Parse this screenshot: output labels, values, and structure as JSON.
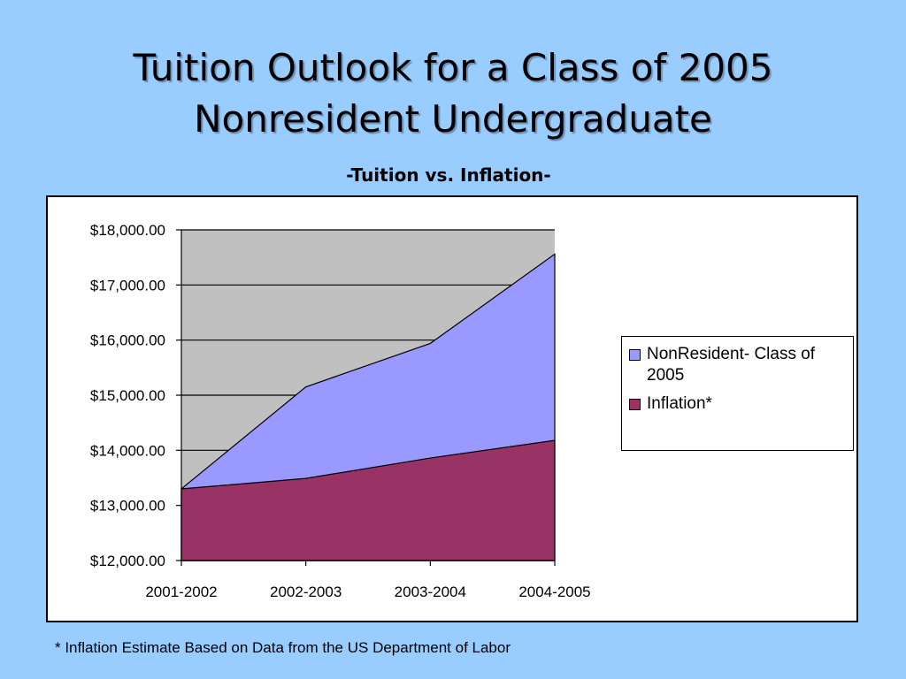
{
  "slide": {
    "title_line1": "Tuition Outlook for a Class of 2005",
    "title_line2": "Nonresident Undergraduate",
    "footnote": "* Inflation Estimate Based on Data from the US Department of Labor"
  },
  "chart_data": {
    "type": "area",
    "subtitle": "-Tuition vs. Inflation-",
    "categories": [
      "2001-2002",
      "2002-2003",
      "2003-2004",
      "2004-2005"
    ],
    "series": [
      {
        "name": "NonResident- Class of 2005",
        "values": [
          13300,
          15150,
          15940,
          17560
        ],
        "color": "#9999ff"
      },
      {
        "name": "Inflation*",
        "values": [
          13300,
          13490,
          13860,
          14180
        ],
        "color": "#993366"
      }
    ],
    "ylim": [
      12000,
      18000
    ],
    "yticks": [
      "$12,000.00",
      "$13,000.00",
      "$14,000.00",
      "$15,000.00",
      "$16,000.00",
      "$17,000.00",
      "$18,000.00"
    ],
    "ytick_values": [
      12000,
      13000,
      14000,
      15000,
      16000,
      17000,
      18000
    ],
    "grid": true,
    "plot_background": "#c0c0c0",
    "legend_position": "right",
    "legend": {
      "item1_line1": "NonResident- Class of",
      "item1_line2": "2005",
      "item2": "Inflation*"
    }
  }
}
